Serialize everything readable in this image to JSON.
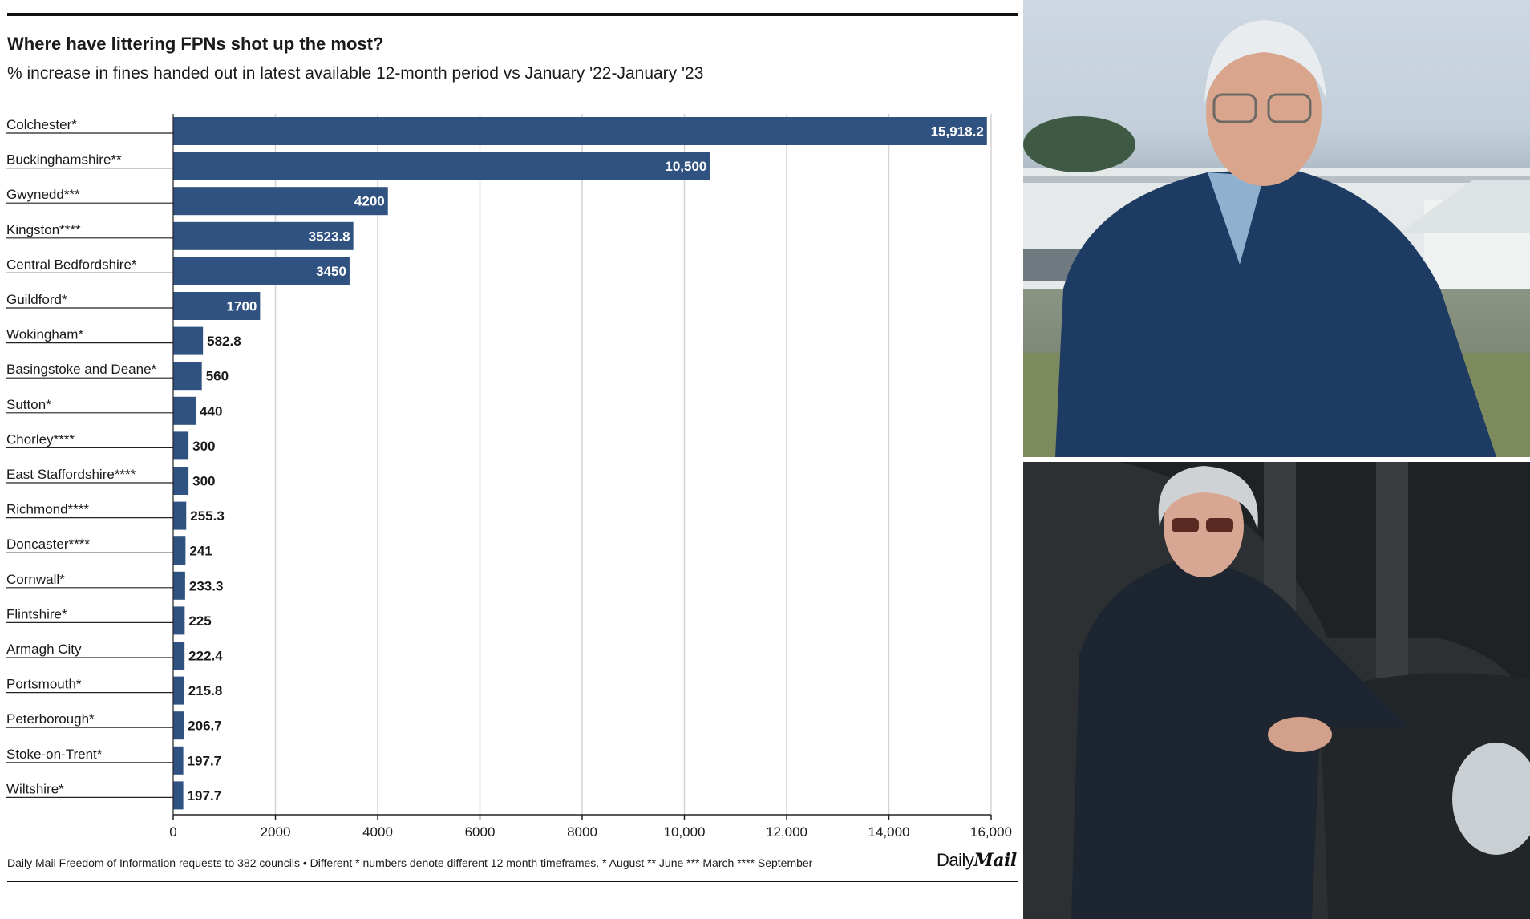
{
  "chart_data": {
    "type": "bar",
    "orientation": "horizontal",
    "title": "Where have littering FPNs shot up the most?",
    "subtitle": "% increase in fines handed out in latest available 12-month period vs January '22-January '23",
    "categories": [
      "Colchester*",
      "Buckinghamshire**",
      "Gwynedd***",
      "Kingston****",
      "Central Bedfordshire*",
      "Guildford*",
      "Wokingham*",
      "Basingstoke and Deane*",
      "Sutton*",
      "Chorley****",
      "East Staffordshire****",
      "Richmond****",
      "Doncaster****",
      "Cornwall*",
      "Flintshire*",
      "Armagh City",
      "Portsmouth*",
      "Peterborough*",
      "Stoke-on-Trent*",
      "Wiltshire*"
    ],
    "values": [
      15918.2,
      10500,
      4200,
      3523.8,
      3450,
      1700,
      582.8,
      560,
      440,
      300,
      300,
      255.3,
      241,
      233.3,
      225,
      222.4,
      215.8,
      206.7,
      197.7,
      197.7
    ],
    "value_labels": [
      "15,918.2",
      "10,500",
      "4200",
      "3523.8",
      "3450",
      "1700",
      "582.8",
      "560",
      "440",
      "300",
      "300",
      "255.3",
      "241",
      "233.3",
      "225",
      "222.4",
      "215.8",
      "206.7",
      "197.7",
      "197.7"
    ],
    "xlim": [
      0,
      16000
    ],
    "xticks": [
      0,
      2000,
      4000,
      6000,
      8000,
      10000,
      12000,
      14000,
      16000
    ],
    "xtick_labels": [
      "0",
      "2000",
      "4000",
      "6000",
      "8000",
      "10,000",
      "12,000",
      "14,000",
      "16,000"
    ],
    "grid": "vertical",
    "bar_color": "#2f5280",
    "xlabel": "",
    "ylabel": ""
  },
  "footer": {
    "source": "Daily Mail Freedom of Information requests to 382 councils • Different * numbers denote different 12 month timeframes. * August ** June *** March **** September",
    "brand_part1": "Daily",
    "brand_part2": "Mail"
  },
  "colors": {
    "bar": "#2f5280",
    "grid": "#d4d4d4",
    "text": "#1a1a1a"
  }
}
